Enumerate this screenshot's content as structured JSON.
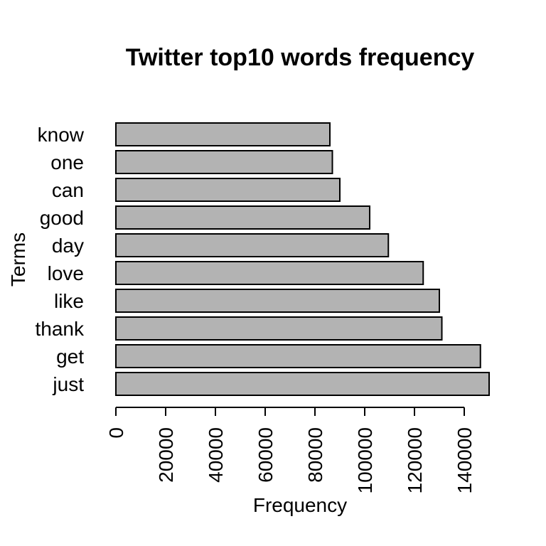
{
  "chart_data": {
    "type": "bar",
    "orientation": "horizontal",
    "title": "Twitter top10 words frequency",
    "xlabel": "Frequency",
    "ylabel": "Terms",
    "categories": [
      "just",
      "get",
      "thank",
      "like",
      "love",
      "day",
      "good",
      "can",
      "one",
      "know"
    ],
    "values": [
      150000,
      146500,
      131000,
      130000,
      123500,
      109500,
      102000,
      90000,
      87000,
      86000
    ],
    "xticks": [
      0,
      20000,
      40000,
      60000,
      80000,
      100000,
      120000,
      140000
    ],
    "xlim": [
      0,
      140000
    ],
    "bar_color": "#b3b3b3",
    "grid": false,
    "legend": "none"
  }
}
